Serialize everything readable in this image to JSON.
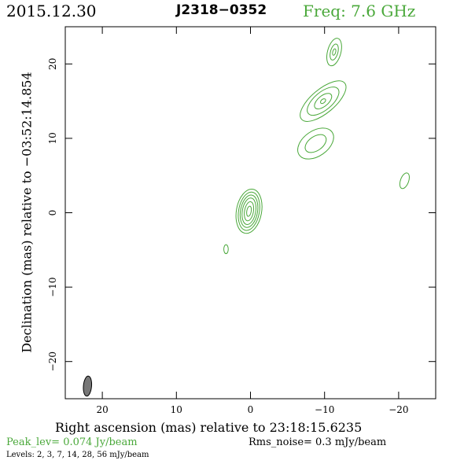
{
  "header": {
    "date": "2015.12.30",
    "source": "J2318−0352",
    "frequency": "Freq: 7.6 GHz"
  },
  "footer": {
    "peak_level": "Peak_lev=  0.074 Jy/beam",
    "rms_noise": "Rms_noise=   0.3 mJy/beam",
    "levels": "Levels:   2,   3,   7,   14,   28,   56 mJy/beam"
  },
  "colors": {
    "contour": "#4aa83a",
    "axis": "#000000",
    "beam": "#777777",
    "accent_green": "#4aa83a"
  },
  "chart_data": {
    "type": "contour",
    "xlabel": "Right ascension (mas) relative to 23:18:15.6235",
    "ylabel": "Declination (mas) relative to −03:52:14.854",
    "xlim": [
      25,
      -25
    ],
    "ylim": [
      -25,
      25
    ],
    "x_ticks": [
      20,
      10,
      0,
      -10,
      -20
    ],
    "x_tick_labels": [
      "20",
      "10",
      "0",
      "−10",
      "−20"
    ],
    "y_ticks": [
      20,
      10,
      0,
      -10,
      -20
    ],
    "y_tick_labels": [
      "20",
      "10",
      "0",
      "−10",
      "−20"
    ],
    "contour_levels_mJy": [
      2,
      3,
      7,
      14,
      28,
      56
    ],
    "components": [
      {
        "x": 0.2,
        "y": 0.2,
        "contours": [
          {
            "a": 1.7,
            "b": 3.0,
            "angle": 10
          },
          {
            "a": 1.4,
            "b": 2.6,
            "angle": 10
          },
          {
            "a": 1.15,
            "b": 2.2,
            "angle": 10
          },
          {
            "a": 0.9,
            "b": 1.8,
            "angle": 10
          },
          {
            "a": 0.6,
            "b": 1.3,
            "angle": 10
          },
          {
            "a": 0.3,
            "b": 0.7,
            "angle": 10
          }
        ]
      },
      {
        "x": -9.8,
        "y": 15.0,
        "contours": [
          {
            "a": 3.8,
            "b": 1.6,
            "angle": -40
          },
          {
            "a": 2.6,
            "b": 1.2,
            "angle": -40
          },
          {
            "a": 1.4,
            "b": 0.7,
            "angle": -40
          },
          {
            "a": 0.4,
            "b": 0.25,
            "angle": -40
          }
        ]
      },
      {
        "x": -8.8,
        "y": 9.3,
        "contours": [
          {
            "a": 2.7,
            "b": 1.7,
            "angle": -35
          },
          {
            "a": 1.6,
            "b": 0.95,
            "angle": -35
          }
        ]
      },
      {
        "x": -11.3,
        "y": 21.6,
        "contours": [
          {
            "a": 0.9,
            "b": 1.9,
            "angle": 15
          },
          {
            "a": 0.5,
            "b": 1.1,
            "angle": 15
          },
          {
            "a": 0.2,
            "b": 0.45,
            "angle": 15
          }
        ]
      },
      {
        "x": -20.8,
        "y": 4.3,
        "contours": [
          {
            "a": 0.55,
            "b": 1.1,
            "angle": 20
          }
        ]
      },
      {
        "x": 3.3,
        "y": -4.9,
        "contours": [
          {
            "a": 0.3,
            "b": 0.6,
            "angle": 0
          }
        ]
      }
    ],
    "beam": {
      "x": 22.0,
      "y": -23.3,
      "a": 0.55,
      "b": 1.35,
      "angle": 5
    }
  }
}
